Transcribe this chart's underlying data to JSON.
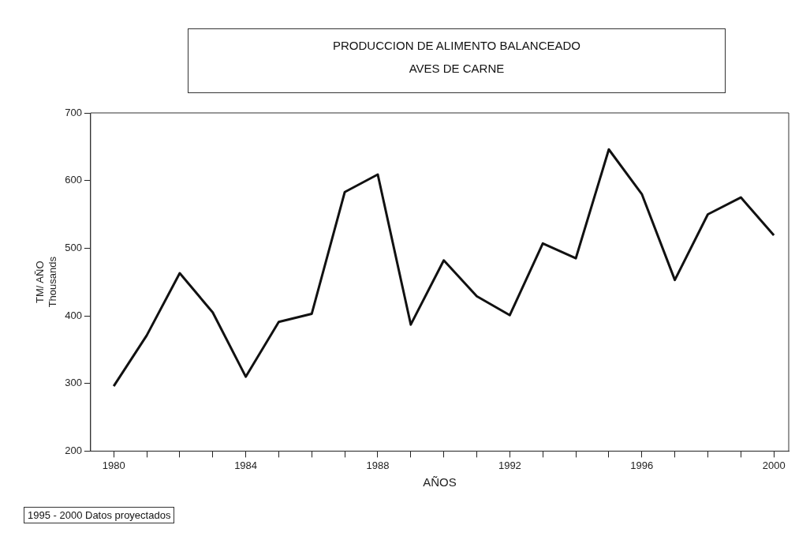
{
  "chart_data": {
    "type": "line",
    "title": "PRODUCCION DE ALIMENTO BALANCEADO",
    "subtitle": "AVES DE CARNE",
    "xlabel": "AÑOS",
    "ylabel": "TM/ AÑO\nThousands",
    "x": [
      1980,
      1981,
      1982,
      1983,
      1984,
      1985,
      1986,
      1987,
      1988,
      1989,
      1990,
      1991,
      1992,
      1993,
      1994,
      1995,
      1996,
      1997,
      1998,
      1999,
      2000
    ],
    "series": [
      {
        "color": "#111111",
        "values": [
          296,
          371,
          463,
          405,
          310,
          391,
          403,
          583,
          609,
          387,
          482,
          429,
          401,
          507,
          485,
          646,
          580,
          453,
          550,
          575,
          519
        ]
      }
    ],
    "xlim": [
      1979.3,
      2000.45
    ],
    "xticks": [
      1980,
      {
        "value": 1981,
        "label": null
      },
      {
        "value": 1982,
        "label": null
      },
      {
        "value": 1983,
        "label": null
      },
      1984,
      {
        "value": 1985,
        "label": null
      },
      {
        "value": 1986,
        "label": null
      },
      {
        "value": 1987,
        "label": null
      },
      1988,
      {
        "value": 1989,
        "label": null
      },
      {
        "value": 1990,
        "label": null
      },
      {
        "value": 1991,
        "label": null
      },
      1992,
      {
        "value": 1993,
        "label": null
      },
      {
        "value": 1994,
        "label": null
      },
      {
        "value": 1995,
        "label": null
      },
      1996,
      {
        "value": 1997,
        "label": null
      },
      {
        "value": 1998,
        "label": null
      },
      {
        "value": 1999,
        "label": null
      },
      2000
    ],
    "ylim": [
      200,
      700
    ],
    "yticks": [
      200,
      300,
      400,
      500,
      600,
      700
    ],
    "grid": false,
    "legend": false,
    "marker": "none",
    "line_style": "solid",
    "annotations": [
      "1995 - 2000 Datos proyectados"
    ]
  }
}
